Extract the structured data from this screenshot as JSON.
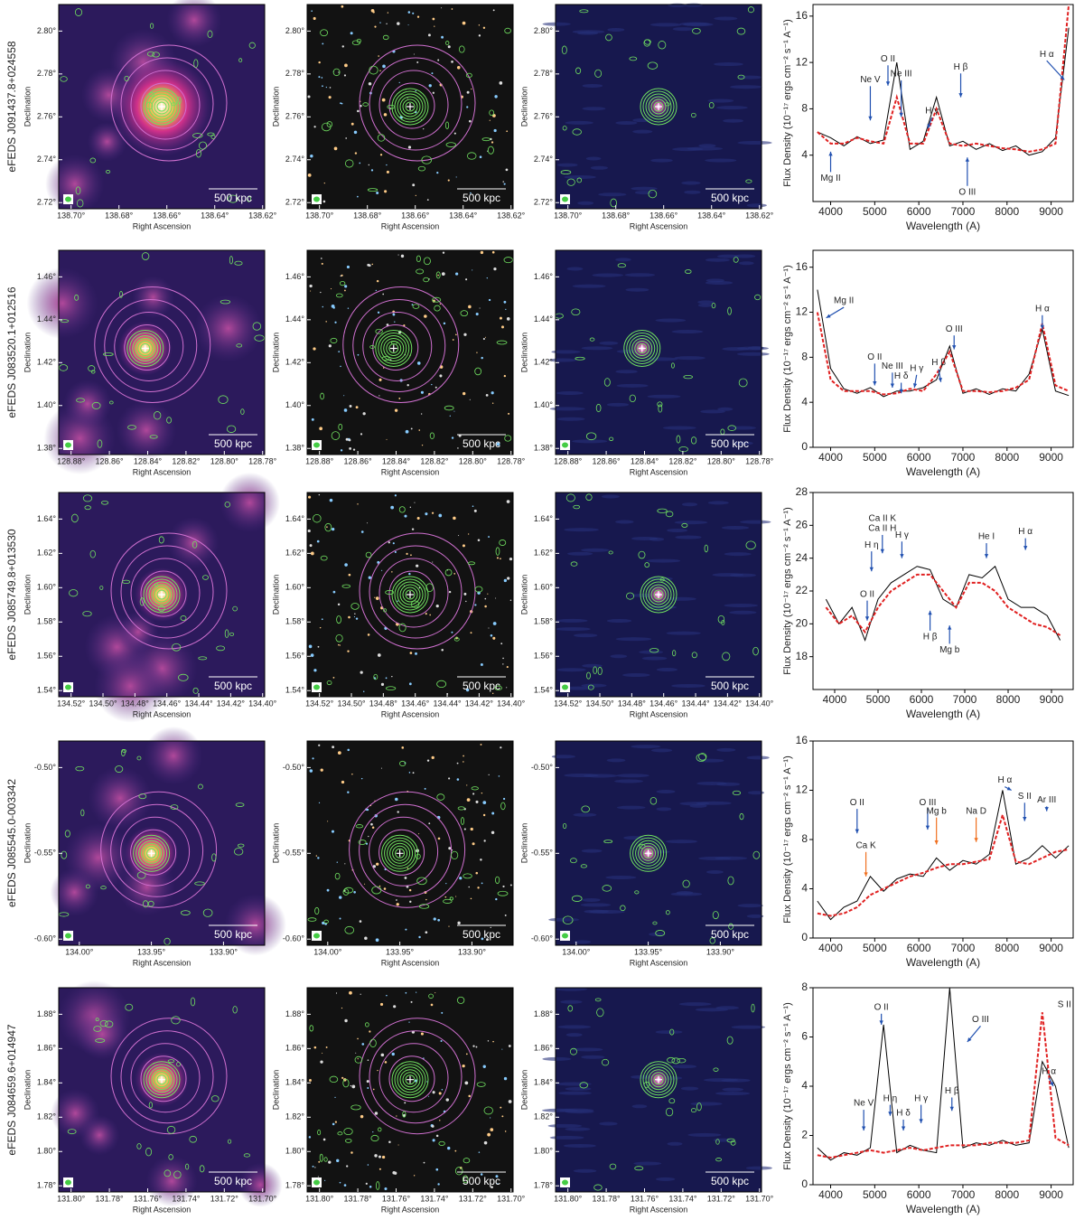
{
  "labels": {
    "dec": "Declination",
    "ra": "Right Ascension",
    "scale": "500 kpc",
    "flux": "Flux Density (10⁻¹⁷ ergs cm⁻² s⁻¹ A⁻¹)",
    "wavelength": "Wavelength (A)"
  },
  "rows": [
    {
      "name": "eFEDS J091437.8+024558",
      "dec_ticks": [
        "2.80°",
        "2.78°",
        "2.76°",
        "2.74°",
        "2.72°"
      ],
      "ra_ticks": [
        "138.70°",
        "138.68°",
        "138.66°",
        "138.64°",
        "138.62°"
      ],
      "chart_data": {
        "type": "line",
        "xlim": [
          3600,
          9500
        ],
        "ylim": [
          0,
          17
        ],
        "xticks": [
          4000,
          5000,
          6000,
          7000,
          8000,
          9000
        ],
        "yticks": [
          4,
          8,
          12,
          16
        ],
        "x": [
          3700,
          4000,
          4300,
          4600,
          4900,
          5200,
          5500,
          5800,
          6100,
          6400,
          6700,
          7000,
          7300,
          7600,
          7900,
          8200,
          8500,
          8800,
          9100,
          9400
        ],
        "series": [
          {
            "color": "#000000",
            "values": [
              6,
              5.5,
              4.8,
              5.6,
              5,
              5.3,
              12,
              4.5,
              5.2,
              9,
              4.8,
              5.2,
              4.5,
              5,
              4.4,
              4.8,
              4,
              4.3,
              5.5,
              15
            ]
          },
          {
            "color": "#e02020",
            "linestyle": "dashed",
            "values": [
              6,
              5,
              5,
              5.5,
              5.2,
              5,
              9,
              5,
              5,
              8,
              5,
              4.8,
              5,
              4.8,
              4.6,
              4.5,
              4.3,
              4.5,
              5,
              17
            ]
          }
        ],
        "annotations": [
          {
            "label": "Mg II",
            "color": "#2050b0"
          },
          {
            "label": "Ne V",
            "color": "#2050b0"
          },
          {
            "label": "O II",
            "color": "#2050b0"
          },
          {
            "label": "Ne III",
            "color": "#2050b0"
          },
          {
            "label": "H γ",
            "color": "#2050b0"
          },
          {
            "label": "H β",
            "color": "#2050b0"
          },
          {
            "label": "O III",
            "color": "#2050b0"
          },
          {
            "label": "H α",
            "color": "#2050b0"
          }
        ]
      }
    },
    {
      "name": "eFEDS J083520.1+012516",
      "dec_ticks": [
        "1.46°",
        "1.44°",
        "1.42°",
        "1.40°",
        "1.38°"
      ],
      "ra_ticks": [
        "128.88°",
        "128.86°",
        "128.84°",
        "128.82°",
        "128.80°",
        "128.78°"
      ],
      "chart_data": {
        "type": "line",
        "xlim": [
          3600,
          9500
        ],
        "ylim": [
          0,
          17.5
        ],
        "xticks": [
          4000,
          5000,
          6000,
          7000,
          8000,
          9000
        ],
        "yticks": [
          0,
          4,
          8,
          12,
          16
        ],
        "x": [
          3700,
          4000,
          4300,
          4600,
          4900,
          5200,
          5500,
          5800,
          6100,
          6400,
          6700,
          7000,
          7300,
          7600,
          7900,
          8200,
          8500,
          8800,
          9100,
          9400
        ],
        "series": [
          {
            "color": "#000000",
            "values": [
              14,
              7,
              5.2,
              4.8,
              5.3,
              4.5,
              5,
              5,
              5.3,
              6,
              9,
              4.8,
              5.2,
              4.7,
              5.2,
              5,
              6.5,
              10.5,
              5,
              4.6
            ]
          },
          {
            "color": "#e02020",
            "linestyle": "dashed",
            "values": [
              12,
              6,
              5,
              5,
              5,
              4.7,
              4.8,
              5.2,
              5,
              6.5,
              8.5,
              5,
              5,
              4.9,
              5,
              5.3,
              6,
              11,
              5.5,
              5
            ]
          }
        ],
        "annotations": [
          {
            "label": "Mg II",
            "color": "#2050b0"
          },
          {
            "label": "O II",
            "color": "#2050b0"
          },
          {
            "label": "Ne III",
            "color": "#2050b0"
          },
          {
            "label": "H δ",
            "color": "#2050b0"
          },
          {
            "label": "H γ",
            "color": "#2050b0"
          },
          {
            "label": "H β",
            "color": "#2050b0"
          },
          {
            "label": "O III",
            "color": "#2050b0"
          },
          {
            "label": "H α",
            "color": "#2050b0"
          }
        ]
      }
    },
    {
      "name": "eFEDS J085749.8+013530",
      "dec_ticks": [
        "1.64°",
        "1.62°",
        "1.60°",
        "1.58°",
        "1.56°",
        "1.54°"
      ],
      "ra_ticks": [
        "134.52°",
        "134.50°",
        "134.48°",
        "134.46°",
        "134.44°",
        "134.42°",
        "134.40°"
      ],
      "chart_data": {
        "type": "line",
        "xlim": [
          3500,
          9500
        ],
        "ylim": [
          16,
          28
        ],
        "xticks": [
          4000,
          5000,
          6000,
          7000,
          8000,
          9000
        ],
        "yticks": [
          18,
          20,
          22,
          24,
          26,
          28
        ],
        "x": [
          3800,
          4100,
          4400,
          4700,
          5000,
          5300,
          5600,
          5900,
          6200,
          6500,
          6800,
          7100,
          7400,
          7700,
          8000,
          8300,
          8600,
          8900,
          9200
        ],
        "series": [
          {
            "color": "#000000",
            "values": [
              21.5,
              20,
              21,
              19,
              21.5,
              22.5,
              23,
              23.5,
              23.3,
              21.5,
              21,
              23,
              22.8,
              23.5,
              21.5,
              21,
              21,
              20.5,
              19
            ]
          },
          {
            "color": "#e02020",
            "linestyle": "dashed",
            "values": [
              21,
              20,
              20.5,
              19.5,
              21,
              22,
              22.5,
              23,
              23,
              22,
              21,
              22.5,
              22.5,
              22,
              21,
              20.5,
              20,
              19.8,
              19.3
            ]
          }
        ],
        "annotations": [
          {
            "label": "Ca II K",
            "color": "#2050b0"
          },
          {
            "label": "Ca II H",
            "color": "#2050b0"
          },
          {
            "label": "H η",
            "color": "#2050b0"
          },
          {
            "label": "H γ",
            "color": "#2050b0"
          },
          {
            "label": "He I",
            "color": "#2050b0"
          },
          {
            "label": "H α",
            "color": "#2050b0"
          },
          {
            "label": "O II",
            "color": "#2050b0"
          },
          {
            "label": "H β",
            "color": "#2050b0"
          },
          {
            "label": "Mg b",
            "color": "#2050b0"
          }
        ]
      }
    },
    {
      "name": "eFEDS J085545.0-003342",
      "dec_ticks": [
        "-0.50°",
        "-0.55°",
        "-0.60°"
      ],
      "ra_ticks": [
        "134.00°",
        "133.95°",
        "133.90°"
      ],
      "chart_data": {
        "type": "line",
        "xlim": [
          3600,
          9500
        ],
        "ylim": [
          0,
          16
        ],
        "xticks": [
          4000,
          5000,
          6000,
          7000,
          8000,
          9000
        ],
        "yticks": [
          0,
          4,
          8,
          12,
          16
        ],
        "x": [
          3700,
          4000,
          4300,
          4600,
          4900,
          5200,
          5500,
          5800,
          6100,
          6400,
          6700,
          7000,
          7300,
          7600,
          7900,
          8200,
          8500,
          8800,
          9100,
          9400
        ],
        "series": [
          {
            "color": "#000000",
            "values": [
              3,
              1.5,
              2.5,
              3,
              5,
              3.8,
              4.8,
              5.2,
              5,
              6.5,
              5.5,
              6.3,
              6,
              6.8,
              12,
              6,
              6.5,
              7.5,
              6.5,
              7.5
            ]
          },
          {
            "color": "#e02020",
            "linestyle": "dashed",
            "values": [
              2,
              1.8,
              2,
              2.5,
              3.5,
              4,
              4.5,
              5,
              5.3,
              5.7,
              6,
              6,
              6.2,
              6.4,
              10,
              6.2,
              6,
              6.5,
              7,
              7.2
            ]
          }
        ],
        "annotations": [
          {
            "label": "O II",
            "color": "#2050b0"
          },
          {
            "label": "Ca K",
            "color": "#f07020"
          },
          {
            "label": "O III",
            "color": "#2050b0"
          },
          {
            "label": "Mg b",
            "color": "#f07020"
          },
          {
            "label": "Na D",
            "color": "#f07020"
          },
          {
            "label": "H α",
            "color": "#2050b0"
          },
          {
            "label": "S II",
            "color": "#2050b0"
          },
          {
            "label": "Ar III",
            "color": "#2050b0"
          }
        ]
      }
    },
    {
      "name": "eFEDS J084659.6+014947",
      "dec_ticks": [
        "1.88°",
        "1.86°",
        "1.84°",
        "1.82°",
        "1.80°",
        "1.78°"
      ],
      "ra_ticks": [
        "131.80°",
        "131.78°",
        "131.76°",
        "131.74°",
        "131.72°",
        "131.70°"
      ],
      "chart_data": {
        "type": "line",
        "xlim": [
          3600,
          9500
        ],
        "ylim": [
          0,
          8
        ],
        "xticks": [
          4000,
          5000,
          6000,
          7000,
          8000,
          9000
        ],
        "yticks": [
          0,
          2,
          4,
          6,
          8
        ],
        "x": [
          3700,
          4000,
          4300,
          4600,
          4900,
          5200,
          5500,
          5800,
          6100,
          6400,
          6700,
          7000,
          7300,
          7600,
          7900,
          8200,
          8500,
          8800,
          9100,
          9400
        ],
        "series": [
          {
            "color": "#000000",
            "values": [
              1.5,
              1,
              1.3,
              1.2,
              1.5,
              6.5,
              1.3,
              1.6,
              1.4,
              1.3,
              8,
              1.5,
              1.7,
              1.6,
              1.8,
              1.6,
              1.7,
              5,
              4,
              1.5
            ]
          },
          {
            "color": "#e02020",
            "linestyle": "dashed",
            "values": [
              1.2,
              1.1,
              1.2,
              1.3,
              1.4,
              1.3,
              1.4,
              1.5,
              1.4,
              1.5,
              1.6,
              1.6,
              1.6,
              1.7,
              1.7,
              1.7,
              1.8,
              7,
              1.9,
              1.6
            ]
          }
        ],
        "annotations": [
          {
            "label": "O II",
            "color": "#2050b0"
          },
          {
            "label": "Ne V",
            "color": "#2050b0"
          },
          {
            "label": "H η",
            "color": "#2050b0"
          },
          {
            "label": "H δ",
            "color": "#2050b0"
          },
          {
            "label": "H γ",
            "color": "#2050b0"
          },
          {
            "label": "H β",
            "color": "#2050b0"
          },
          {
            "label": "O III",
            "color": "#2050b0"
          },
          {
            "label": "H α",
            "color": "#2050b0"
          },
          {
            "label": "S II",
            "color": "#2050b0"
          }
        ]
      }
    }
  ]
}
